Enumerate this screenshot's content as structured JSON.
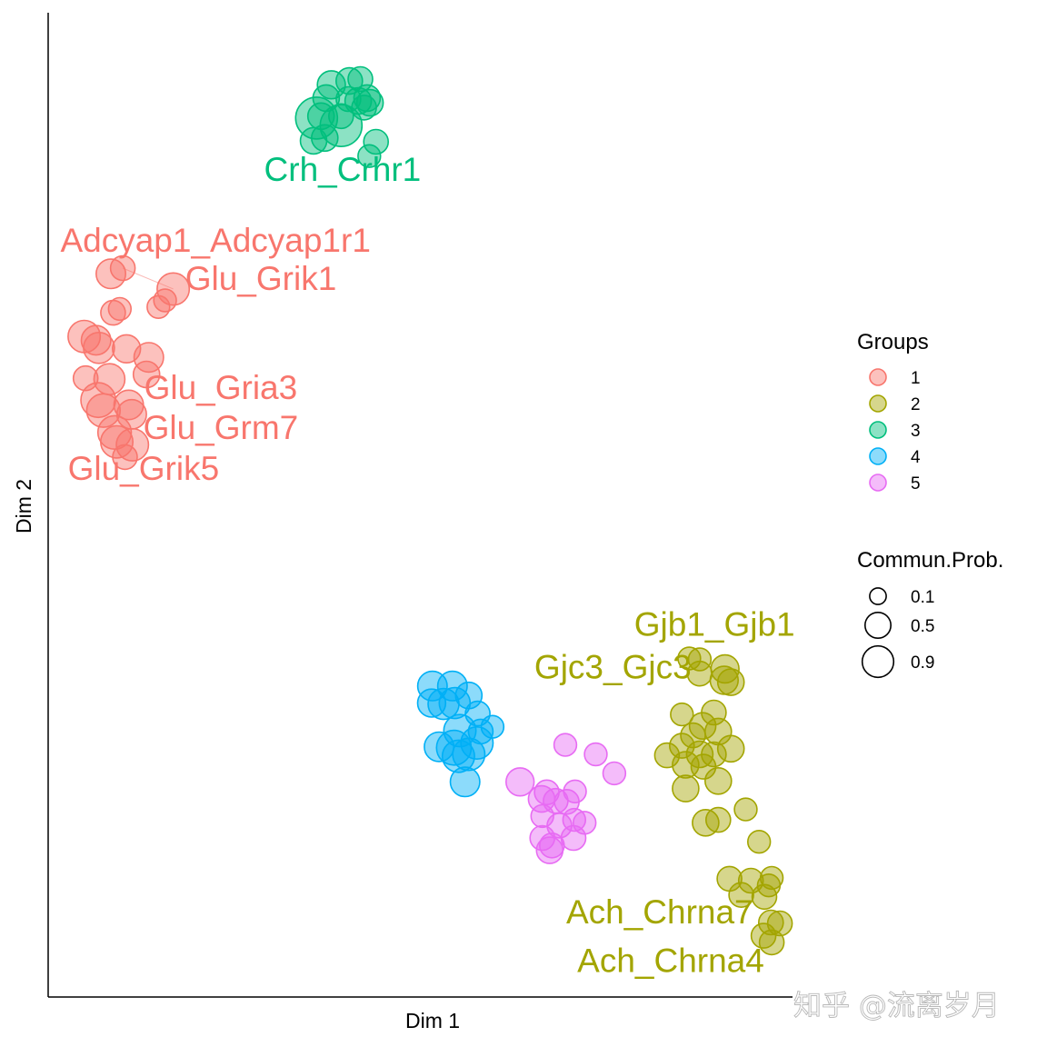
{
  "chart_data": {
    "type": "scatter",
    "title": "",
    "xlabel": "Dim 1",
    "ylabel": "Dim 2",
    "xlim": [
      0,
      100
    ],
    "ylim": [
      0,
      100
    ],
    "grid": false,
    "colors": {
      "1": "#F8766D",
      "2": "#A3A500",
      "3": "#00BF7D",
      "4": "#00B0F6",
      "5": "#E76BF3"
    },
    "legend": {
      "position": "right",
      "groups_title": "Groups",
      "groups": [
        "1",
        "2",
        "3",
        "4",
        "5"
      ],
      "size_title": "Commun.Prob.",
      "sizes": [
        {
          "label": "0.1",
          "value": 0.1
        },
        {
          "label": "0.5",
          "value": 0.5
        },
        {
          "label": "0.9",
          "value": 0.9
        }
      ]
    },
    "labels": [
      {
        "text": "Crh_Crhr1",
        "group": "3",
        "x": 39.4,
        "y": 84.8
      },
      {
        "text": "Adcyap1_Adcyap1r1",
        "group": "1",
        "x": 22.3,
        "y": 77.3
      },
      {
        "text": "Glu_Grik1",
        "group": "1",
        "x": 28.4,
        "y": 73.3
      },
      {
        "text": "Glu_Gria3",
        "group": "1",
        "x": 23.0,
        "y": 61.8
      },
      {
        "text": "Glu_Grm7",
        "group": "1",
        "x": 23.0,
        "y": 57.6
      },
      {
        "text": "Glu_Grik5",
        "group": "1",
        "x": 12.6,
        "y": 53.3
      },
      {
        "text": "Gjb1_Gjb1",
        "group": "2",
        "x": 89.5,
        "y": 36.9
      },
      {
        "text": "Gjc3_Gjc3",
        "group": "2",
        "x": 75.8,
        "y": 32.4
      },
      {
        "text": "Ach_Chrna7",
        "group": "2",
        "x": 82.1,
        "y": 6.6
      },
      {
        "text": "Ach_Chrna4",
        "group": "2",
        "x": 83.6,
        "y": 1.5
      }
    ],
    "series": [
      {
        "name": "1",
        "points": [
          {
            "x": 9.8,
            "y": 75.6,
            "prob": 0.2
          },
          {
            "x": 8.2,
            "y": 75.0,
            "prob": 0.35
          },
          {
            "x": 16.6,
            "y": 73.4,
            "prob": 0.45
          },
          {
            "x": 15.5,
            "y": 72.2,
            "prob": 0.15
          },
          {
            "x": 14.6,
            "y": 71.5,
            "prob": 0.15
          },
          {
            "x": 9.4,
            "y": 71.3,
            "prob": 0.15
          },
          {
            "x": 8.5,
            "y": 70.9,
            "prob": 0.2
          },
          {
            "x": 4.6,
            "y": 68.4,
            "prob": 0.45
          },
          {
            "x": 6.2,
            "y": 68.0,
            "prob": 0.35
          },
          {
            "x": 6.6,
            "y": 67.2,
            "prob": 0.4
          },
          {
            "x": 10.3,
            "y": 67.1,
            "prob": 0.3
          },
          {
            "x": 13.3,
            "y": 66.2,
            "prob": 0.35
          },
          {
            "x": 13.0,
            "y": 64.4,
            "prob": 0.25
          },
          {
            "x": 4.8,
            "y": 64.0,
            "prob": 0.2
          },
          {
            "x": 8.0,
            "y": 63.9,
            "prob": 0.4
          },
          {
            "x": 6.5,
            "y": 61.7,
            "prob": 0.55
          },
          {
            "x": 10.6,
            "y": 61.2,
            "prob": 0.35
          },
          {
            "x": 7.2,
            "y": 60.6,
            "prob": 0.5
          },
          {
            "x": 11.0,
            "y": 60.2,
            "prob": 0.35
          },
          {
            "x": 8.7,
            "y": 58.3,
            "prob": 0.5
          },
          {
            "x": 9.0,
            "y": 57.3,
            "prob": 0.45
          },
          {
            "x": 11.1,
            "y": 57.0,
            "prob": 0.45
          },
          {
            "x": 10.1,
            "y": 55.7,
            "prob": 0.2
          }
        ]
      },
      {
        "name": "2",
        "points": [
          {
            "x": 86.1,
            "y": 34.5,
            "prob": 0.15
          },
          {
            "x": 87.5,
            "y": 34.4,
            "prob": 0.15
          },
          {
            "x": 90.9,
            "y": 33.4,
            "prob": 0.3
          },
          {
            "x": 87.5,
            "y": 32.9,
            "prob": 0.2
          },
          {
            "x": 90.8,
            "y": 32.2,
            "prob": 0.3
          },
          {
            "x": 91.7,
            "y": 32.0,
            "prob": 0.25
          },
          {
            "x": 85.1,
            "y": 28.6,
            "prob": 0.15
          },
          {
            "x": 89.4,
            "y": 28.8,
            "prob": 0.2
          },
          {
            "x": 87.9,
            "y": 27.4,
            "prob": 0.25
          },
          {
            "x": 90.0,
            "y": 26.8,
            "prob": 0.25
          },
          {
            "x": 86.6,
            "y": 26.4,
            "prob": 0.2
          },
          {
            "x": 85.1,
            "y": 25.3,
            "prob": 0.2
          },
          {
            "x": 91.7,
            "y": 25.0,
            "prob": 0.25
          },
          {
            "x": 89.4,
            "y": 24.4,
            "prob": 0.2
          },
          {
            "x": 87.5,
            "y": 24.4,
            "prob": 0.25
          },
          {
            "x": 83.1,
            "y": 24.3,
            "prob": 0.2
          },
          {
            "x": 85.6,
            "y": 23.3,
            "prob": 0.25
          },
          {
            "x": 88.0,
            "y": 23.1,
            "prob": 0.2
          },
          {
            "x": 90.0,
            "y": 21.6,
            "prob": 0.25
          },
          {
            "x": 85.6,
            "y": 20.8,
            "prob": 0.25
          },
          {
            "x": 93.7,
            "y": 18.6,
            "prob": 0.15
          },
          {
            "x": 88.3,
            "y": 17.2,
            "prob": 0.25
          },
          {
            "x": 90.0,
            "y": 17.5,
            "prob": 0.2
          },
          {
            "x": 95.5,
            "y": 15.2,
            "prob": 0.15
          },
          {
            "x": 91.5,
            "y": 11.3,
            "prob": 0.2
          },
          {
            "x": 94.4,
            "y": 11.1,
            "prob": 0.2
          },
          {
            "x": 97.2,
            "y": 11.4,
            "prob": 0.15
          },
          {
            "x": 96.8,
            "y": 10.6,
            "prob": 0.15
          },
          {
            "x": 93.1,
            "y": 9.6,
            "prob": 0.2
          },
          {
            "x": 96.2,
            "y": 9.4,
            "prob": 0.2
          },
          {
            "x": 97.1,
            "y": 6.7,
            "prob": 0.2
          },
          {
            "x": 98.3,
            "y": 6.6,
            "prob": 0.2
          },
          {
            "x": 96.1,
            "y": 5.3,
            "prob": 0.2
          },
          {
            "x": 97.2,
            "y": 4.6,
            "prob": 0.2
          }
        ]
      },
      {
        "name": "3",
        "points": [
          {
            "x": 40.3,
            "y": 95.3,
            "prob": 0.25
          },
          {
            "x": 41.8,
            "y": 95.5,
            "prob": 0.2
          },
          {
            "x": 37.9,
            "y": 94.9,
            "prob": 0.3
          },
          {
            "x": 37.2,
            "y": 93.5,
            "prob": 0.25
          },
          {
            "x": 40.2,
            "y": 93.4,
            "prob": 0.2
          },
          {
            "x": 42.7,
            "y": 93.5,
            "prob": 0.25
          },
          {
            "x": 41.5,
            "y": 93.2,
            "prob": 0.25
          },
          {
            "x": 43.1,
            "y": 93.0,
            "prob": 0.25
          },
          {
            "x": 42.3,
            "y": 92.5,
            "prob": 0.2
          },
          {
            "x": 36.5,
            "y": 91.6,
            "prob": 0.25
          },
          {
            "x": 39.2,
            "y": 91.6,
            "prob": 0.2
          },
          {
            "x": 35.9,
            "y": 91.4,
            "prob": 0.9
          },
          {
            "x": 39.2,
            "y": 90.6,
            "prob": 0.9
          },
          {
            "x": 37.0,
            "y": 89.3,
            "prob": 0.25
          },
          {
            "x": 35.5,
            "y": 89.0,
            "prob": 0.25
          },
          {
            "x": 43.9,
            "y": 88.9,
            "prob": 0.2
          },
          {
            "x": 43.0,
            "y": 87.4,
            "prob": 0.15
          }
        ]
      },
      {
        "name": "4",
        "points": [
          {
            "x": 51.5,
            "y": 31.6,
            "prob": 0.35
          },
          {
            "x": 54.2,
            "y": 31.6,
            "prob": 0.35
          },
          {
            "x": 56.4,
            "y": 30.6,
            "prob": 0.25
          },
          {
            "x": 51.4,
            "y": 29.8,
            "prob": 0.3
          },
          {
            "x": 53.0,
            "y": 29.7,
            "prob": 0.4
          },
          {
            "x": 54.5,
            "y": 29.8,
            "prob": 0.4
          },
          {
            "x": 57.6,
            "y": 28.7,
            "prob": 0.2
          },
          {
            "x": 59.6,
            "y": 27.3,
            "prob": 0.15
          },
          {
            "x": 55.2,
            "y": 26.9,
            "prob": 0.45
          },
          {
            "x": 58.0,
            "y": 26.8,
            "prob": 0.2
          },
          {
            "x": 57.5,
            "y": 25.6,
            "prob": 0.45
          },
          {
            "x": 52.4,
            "y": 25.2,
            "prob": 0.35
          },
          {
            "x": 54.4,
            "y": 25.1,
            "prob": 0.55
          },
          {
            "x": 56.4,
            "y": 24.4,
            "prob": 0.45
          },
          {
            "x": 55.0,
            "y": 24.2,
            "prob": 0.45
          },
          {
            "x": 55.9,
            "y": 21.5,
            "prob": 0.35
          }
        ]
      },
      {
        "name": "5",
        "points": [
          {
            "x": 69.4,
            "y": 25.4,
            "prob": 0.15
          },
          {
            "x": 73.5,
            "y": 24.4,
            "prob": 0.15
          },
          {
            "x": 76.0,
            "y": 22.4,
            "prob": 0.15
          },
          {
            "x": 63.3,
            "y": 21.5,
            "prob": 0.3
          },
          {
            "x": 66.9,
            "y": 20.4,
            "prob": 0.2
          },
          {
            "x": 70.7,
            "y": 20.5,
            "prob": 0.15
          },
          {
            "x": 66.2,
            "y": 19.7,
            "prob": 0.25
          },
          {
            "x": 68.1,
            "y": 19.5,
            "prob": 0.2
          },
          {
            "x": 69.6,
            "y": 19.4,
            "prob": 0.2
          },
          {
            "x": 66.3,
            "y": 17.9,
            "prob": 0.15
          },
          {
            "x": 70.6,
            "y": 17.5,
            "prob": 0.15
          },
          {
            "x": 68.6,
            "y": 16.9,
            "prob": 0.2
          },
          {
            "x": 72.0,
            "y": 17.2,
            "prob": 0.15
          },
          {
            "x": 66.3,
            "y": 15.6,
            "prob": 0.2
          },
          {
            "x": 70.5,
            "y": 15.6,
            "prob": 0.2
          },
          {
            "x": 67.6,
            "y": 14.8,
            "prob": 0.2
          },
          {
            "x": 67.3,
            "y": 14.3,
            "prob": 0.25
          }
        ]
      }
    ]
  },
  "watermark": "知乎 @流离岁月"
}
